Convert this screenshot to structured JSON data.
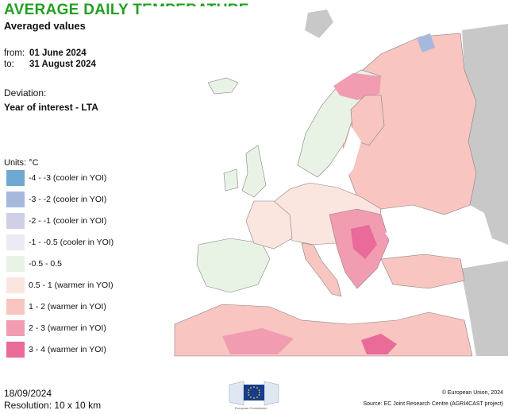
{
  "header": {
    "title": "AVERAGE DAILY TEMPERATURE",
    "subtitle": "Averaged values"
  },
  "period": {
    "from_label": "from:",
    "from_value": "01 June 2024",
    "to_label": "to:",
    "to_value": "31 August 2024"
  },
  "deviation": {
    "label": "Deviation:",
    "value": "Year of interest - LTA"
  },
  "legend": {
    "units": "Units: °C",
    "items": [
      {
        "label": "-4 - -3 (cooler in YOI)",
        "color": "#6fa8d2"
      },
      {
        "label": "-3 - -2 (cooler in YOI)",
        "color": "#a6b8dc"
      },
      {
        "label": "-2 - -1 (cooler in YOI)",
        "color": "#cfd0e6"
      },
      {
        "label": "-1 - -0.5 (cooler in YOI)",
        "color": "#ecebf4"
      },
      {
        "label": "-0.5 - 0.5",
        "color": "#e8f3e6"
      },
      {
        "label": "0.5 - 1 (warmer in YOI)",
        "color": "#fbe6df"
      },
      {
        "label": "1 - 2 (warmer in YOI)",
        "color": "#f8c5c0"
      },
      {
        "label": "2 - 3 (warmer in YOI)",
        "color": "#f29cb2"
      },
      {
        "label": "3 - 4 (warmer in YOI)",
        "color": "#ea6a9a"
      }
    ]
  },
  "colors": {
    "title": "#22a022",
    "sea": "#ffffff",
    "outside_region": "#c8c8c8",
    "border": "#8a7f84"
  },
  "footer": {
    "date": "18/09/2024",
    "resolution": "Resolution: 10 x 10 km",
    "copyright": "© European Union, 2024",
    "source": "Source: EC Joint Research Centre (AGRI4CAST project)",
    "logo_caption": "European Commission"
  }
}
